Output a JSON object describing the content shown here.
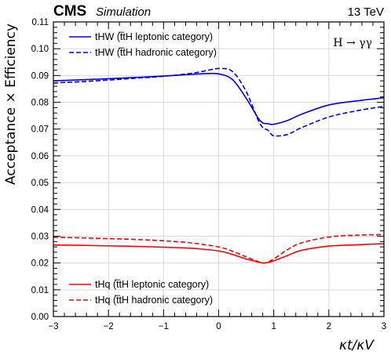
{
  "header": {
    "experiment": "CMS",
    "qualifier": "Simulation",
    "energy": "13 TeV"
  },
  "chart_data": {
    "type": "line",
    "annotation": "H → γγ",
    "xlabel": "κt/κV",
    "ylabel": "Acceptance × Efficiency",
    "xlim": [
      -3,
      3
    ],
    "ylim": [
      0,
      0.11
    ],
    "x_ticks": [
      "−3",
      "−2",
      "−1",
      "0",
      "1",
      "2",
      "3"
    ],
    "y_ticks": [
      "0.00",
      "0.01",
      "0.02",
      "0.03",
      "0.04",
      "0.05",
      "0.06",
      "0.07",
      "0.08",
      "0.09",
      "0.10",
      "0.11"
    ],
    "grid": true,
    "legend_placement": [
      "top-left",
      "bottom-left"
    ],
    "series": [
      {
        "name": "tHW (t̅tH leptonic category)",
        "color": "#0000ee",
        "style": "solid",
        "x": [
          -3,
          -2.5,
          -2,
          -1.5,
          -1,
          -0.5,
          -0.25,
          0,
          0.25,
          0.5,
          0.75,
          0.9,
          1.0,
          1.25,
          1.5,
          2,
          2.5,
          3
        ],
        "y": [
          0.088,
          0.0884,
          0.0888,
          0.0893,
          0.0898,
          0.0904,
          0.0907,
          0.0906,
          0.0885,
          0.0815,
          0.0732,
          0.072,
          0.0718,
          0.0732,
          0.0755,
          0.079,
          0.0805,
          0.0817
        ]
      },
      {
        "name": "tHW (t̅tH hadronic category)",
        "color": "#0000ee",
        "style": "dashed",
        "x": [
          -3,
          -2.5,
          -2,
          -1.5,
          -1,
          -0.5,
          -0.25,
          0,
          0.25,
          0.5,
          0.75,
          0.9,
          1.0,
          1.25,
          1.5,
          2,
          2.5,
          3
        ],
        "y": [
          0.0872,
          0.0877,
          0.0883,
          0.089,
          0.0897,
          0.0908,
          0.0917,
          0.0926,
          0.0915,
          0.084,
          0.072,
          0.0695,
          0.0675,
          0.068,
          0.0705,
          0.0745,
          0.0768,
          0.0785
        ]
      },
      {
        "name": "tHq (t̅tH leptonic category)",
        "color": "#ff0000",
        "style": "solid",
        "x": [
          -3,
          -2.5,
          -2,
          -1.5,
          -1,
          -0.5,
          0,
          0.25,
          0.5,
          0.75,
          0.85,
          1.0,
          1.25,
          1.5,
          2,
          2.5,
          3
        ],
        "y": [
          0.0267,
          0.0266,
          0.0264,
          0.0262,
          0.0259,
          0.0255,
          0.0245,
          0.0232,
          0.0215,
          0.0202,
          0.02,
          0.0208,
          0.0228,
          0.0247,
          0.0263,
          0.0268,
          0.0272
        ]
      },
      {
        "name": "tHq (t̅tH hadronic category)",
        "color": "#ff0000",
        "style": "dashed",
        "x": [
          -3,
          -2.5,
          -2,
          -1.5,
          -1,
          -0.5,
          0,
          0.25,
          0.5,
          0.75,
          0.85,
          1.0,
          1.25,
          1.5,
          2,
          2.5,
          3
        ],
        "y": [
          0.0296,
          0.0294,
          0.0291,
          0.0288,
          0.0283,
          0.0275,
          0.026,
          0.0244,
          0.0223,
          0.0203,
          0.0201,
          0.0215,
          0.025,
          0.0275,
          0.0297,
          0.0304,
          0.0306
        ]
      }
    ]
  }
}
